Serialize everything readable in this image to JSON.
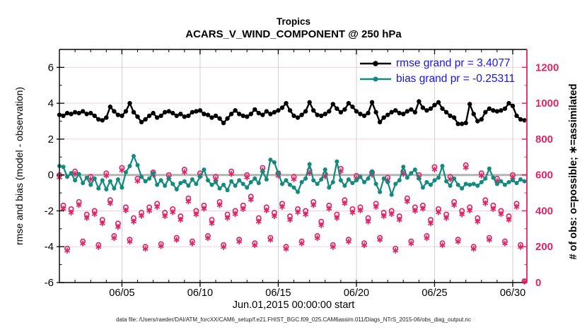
{
  "title": {
    "line1": "Tropics",
    "line2": "ACARS_V_WIND_COMPONENT @ 250 hPa"
  },
  "axes": {
    "left_label": "rmse and bias (model - observation)",
    "right_label": "# of obs: o=possible; ∗=assimilated",
    "x_label": "Jun.01,2015 00:00:00 start",
    "x_tick_labels": [
      "06/05",
      "06/10",
      "06/15",
      "06/20",
      "06/25",
      "06/30"
    ],
    "x_tick_days": [
      4,
      9,
      14,
      19,
      24,
      29
    ],
    "left_tick_labels": [
      "-6",
      "-4",
      "-2",
      "0",
      "2",
      "4",
      "6"
    ],
    "left_tick_values": [
      -6,
      -4,
      -2,
      0,
      2,
      4,
      6
    ],
    "right_tick_labels": [
      "0",
      "200",
      "400",
      "600",
      "800",
      "1000",
      "1200"
    ],
    "right_tick_values": [
      0,
      200,
      400,
      600,
      800,
      1000,
      1200
    ],
    "left_range": [
      -6,
      7
    ],
    "right_range": [
      0,
      1300
    ],
    "x_range_days": [
      0,
      29.9
    ]
  },
  "legend": {
    "items": [
      {
        "label": "rmse grand pr = 3.4077",
        "color": "#000000"
      },
      {
        "label": "bias grand pr = -0.25311",
        "color": "#128a7e"
      }
    ]
  },
  "footer": "data file: /Users/raeder/DAI/ATM_forcXX/CAM6_setup/f.e21.FHIST_BGC.f09_025.CAM6assim.011/Diags_NTrS_2015-06/obs_diag_output.nc",
  "colors": {
    "rmse": "#000000",
    "bias": "#128a7e",
    "obs": "#df2468",
    "pink_grid": "#f6d0de",
    "gray_grid": "#cfcfcf",
    "zero_line": "#b4b4b4",
    "legend_text": "#1616e8",
    "axis": "#000000"
  },
  "chart_data": {
    "type": "line",
    "x_unit": "days since Jun.01,2015 00:00:00",
    "x_start": 0,
    "x_step_days": 0.25,
    "series": [
      {
        "name": "rmse (left axis)",
        "axis": "left",
        "grand_mean": 3.4077,
        "values": [
          3.35,
          3.3,
          3.45,
          3.4,
          3.5,
          3.45,
          3.55,
          3.4,
          3.45,
          3.3,
          3.1,
          3.05,
          3.2,
          3.8,
          3.55,
          3.35,
          3.3,
          3.55,
          4.0,
          3.5,
          3.25,
          2.95,
          3.1,
          3.3,
          3.45,
          3.2,
          3.3,
          3.5,
          3.55,
          3.45,
          3.3,
          3.4,
          3.25,
          3.3,
          3.5,
          3.55,
          3.6,
          3.4,
          3.35,
          3.2,
          3.3,
          3.15,
          2.9,
          3.15,
          3.4,
          3.6,
          3.4,
          3.3,
          3.25,
          3.4,
          3.65,
          3.45,
          3.35,
          3.55,
          3.4,
          3.5,
          3.6,
          3.75,
          4.0,
          3.6,
          3.3,
          3.2,
          3.35,
          3.55,
          4.05,
          3.6,
          3.35,
          3.3,
          3.4,
          3.55,
          3.95,
          3.7,
          3.5,
          3.65,
          4.0,
          3.8,
          3.55,
          3.4,
          3.3,
          3.45,
          4.05,
          3.5,
          2.95,
          3.2,
          3.35,
          3.5,
          3.6,
          3.45,
          3.4,
          3.55,
          3.65,
          3.5,
          4.1,
          3.75,
          3.6,
          3.7,
          3.9,
          4.05,
          3.7,
          3.5,
          3.3,
          3.2,
          2.85,
          2.85,
          2.9,
          3.95,
          3.4,
          3.0,
          3.1,
          3.5,
          3.7,
          3.6,
          3.55,
          3.6,
          3.7,
          4.0,
          3.85,
          3.3,
          3.1,
          3.05
        ]
      },
      {
        "name": "bias (left axis)",
        "axis": "left",
        "grand_mean": -0.25311,
        "values": [
          0.5,
          0.45,
          -0.1,
          0.1,
          -0.3,
          0.05,
          -0.45,
          -0.15,
          -0.55,
          -0.2,
          -0.75,
          -0.3,
          -0.8,
          -0.35,
          -0.75,
          -0.25,
          -0.7,
          0.15,
          0.5,
          1.05,
          0.55,
          -0.1,
          -0.35,
          -0.2,
          0.1,
          -0.55,
          -0.3,
          -0.6,
          -0.2,
          -0.5,
          -0.8,
          -0.45,
          -0.35,
          -0.6,
          -0.25,
          -0.5,
          -0.1,
          0.3,
          -0.3,
          -0.55,
          -0.4,
          -0.75,
          -0.55,
          -0.85,
          -0.35,
          -0.6,
          -0.3,
          -0.5,
          -0.7,
          -0.4,
          -0.2,
          -0.45,
          0.2,
          -0.25,
          0.85,
          0.7,
          0.1,
          -0.5,
          -0.3,
          -0.55,
          -0.7,
          -0.95,
          -0.4,
          -0.2,
          0.6,
          -0.3,
          -0.5,
          -0.25,
          0.3,
          -0.7,
          -0.4,
          0.75,
          -0.3,
          -0.6,
          -0.25,
          -0.45,
          -0.3,
          -0.1,
          -0.4,
          -0.2,
          0.2,
          -0.5,
          -0.95,
          -0.2,
          -0.4,
          -1.1,
          -0.5,
          -0.3,
          0.45,
          -0.15,
          0.1,
          0.3,
          -0.2,
          -0.7,
          -0.4,
          -0.55,
          -0.3,
          -0.15,
          0.5,
          -0.35,
          -0.6,
          -0.2,
          -0.55,
          -0.75,
          -0.5,
          -0.55,
          -0.5,
          -0.6,
          -0.4,
          -0.2,
          0.35,
          -0.15,
          -0.5,
          -0.35,
          -0.55,
          -0.4,
          -0.3,
          -0.45,
          -0.25,
          -0.35
        ]
      },
      {
        "name": "# of obs possible (right axis)",
        "axis": "right",
        "marker": "circle",
        "values": [
          600,
          430,
          190,
          410,
          620,
          450,
          230,
          380,
          590,
          400,
          210,
          350,
          610,
          460,
          260,
          330,
          640,
          420,
          240,
          360,
          580,
          390,
          200,
          420,
          615,
          440,
          215,
          390,
          600,
          410,
          250,
          370,
          630,
          470,
          230,
          400,
          610,
          430,
          260,
          350,
          590,
          450,
          210,
          380,
          620,
          400,
          240,
          430,
          600,
          480,
          220,
          360,
          640,
          420,
          250,
          390,
          610,
          440,
          200,
          370,
          590,
          410,
          230,
          400,
          625,
          450,
          260,
          340,
          605,
          430,
          210,
          380,
          635,
          460,
          240,
          410,
          595,
          420,
          220,
          360,
          615,
          440,
          250,
          390,
          585,
          400,
          190,
          370,
          620,
          470,
          230,
          420,
          600,
          430,
          260,
          350,
          645,
          410,
          220,
          380,
          590,
          450,
          240,
          400,
          655,
          420,
          200,
          360,
          610,
          460,
          250,
          430,
          580,
          400,
          230,
          370,
          600,
          440,
          210,
          8
        ]
      },
      {
        "name": "# of obs assimilated (right axis)",
        "axis": "right",
        "marker": "asterisk",
        "values": [
          586,
          412,
          178,
          390,
          606,
          432,
          218,
          360,
          576,
          382,
          198,
          330,
          596,
          442,
          248,
          310,
          626,
          402,
          228,
          340,
          566,
          372,
          188,
          400,
          601,
          422,
          203,
          370,
          586,
          392,
          238,
          350,
          616,
          452,
          218,
          380,
          596,
          412,
          248,
          330,
          576,
          432,
          198,
          360,
          606,
          382,
          228,
          410,
          586,
          462,
          208,
          340,
          626,
          402,
          238,
          370,
          596,
          422,
          188,
          350,
          576,
          392,
          218,
          380,
          611,
          432,
          248,
          320,
          591,
          412,
          198,
          360,
          621,
          442,
          228,
          390,
          581,
          402,
          208,
          340,
          601,
          422,
          238,
          370,
          571,
          382,
          178,
          350,
          606,
          452,
          218,
          400,
          586,
          412,
          248,
          330,
          631,
          392,
          208,
          360,
          576,
          432,
          228,
          380,
          641,
          402,
          188,
          340,
          596,
          442,
          238,
          410,
          566,
          382,
          218,
          350,
          586,
          422,
          198,
          5
        ]
      }
    ]
  }
}
